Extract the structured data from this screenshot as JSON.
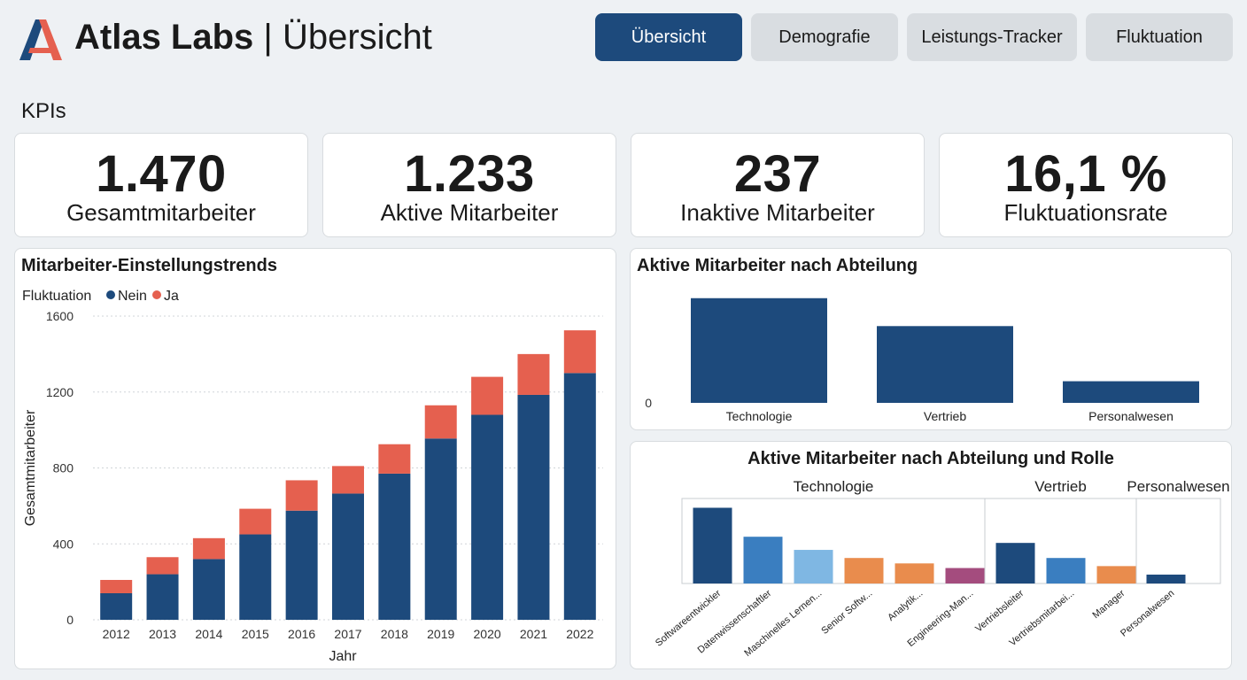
{
  "header": {
    "brand": "Atlas Labs",
    "separator": "|",
    "page_title": "Übersicht",
    "colors": {
      "logo_blue": "#1d4a7c",
      "logo_red": "#e5604f"
    }
  },
  "tabs": [
    {
      "label": "Übersicht",
      "active": true
    },
    {
      "label": "Demografie",
      "active": false
    },
    {
      "label": "Leistungs-Tracker",
      "active": false
    },
    {
      "label": "Fluktuation",
      "active": false
    }
  ],
  "kpi_section": {
    "heading": "KPIs"
  },
  "kpis": [
    {
      "value": "1.470",
      "label": "Gesamtmitarbeiter"
    },
    {
      "value": "1.233",
      "label": "Aktive Mitarbeiter"
    },
    {
      "value": "237",
      "label": "Inaktive Mitarbeiter"
    },
    {
      "value": "16,1 %",
      "label": "Fluktuationsrate"
    }
  ],
  "hiring_panel": {
    "title": "Mitarbeiter-Einstellungstrends"
  },
  "dept_panel": {
    "title": "Aktive Mitarbeiter nach Abteilung"
  },
  "role_panel": {
    "title": "Aktive Mitarbeiter nach Abteilung und Rolle"
  },
  "chart_data": [
    {
      "type": "bar",
      "stacked": true,
      "title": "Mitarbeiter-Einstellungstrends",
      "xlabel": "Jahr",
      "ylabel": "Gesamtmitarbeiter",
      "legend_title": "Fluktuation",
      "legend_position": "top-left",
      "grid": true,
      "ylim": [
        0,
        1600
      ],
      "yticks": [
        0,
        400,
        800,
        1200,
        1600
      ],
      "categories": [
        "2012",
        "2013",
        "2014",
        "2015",
        "2016",
        "2017",
        "2018",
        "2019",
        "2020",
        "2021",
        "2022"
      ],
      "series": [
        {
          "name": "Nein",
          "color": "#1d4a7c",
          "values": [
            140,
            240,
            320,
            450,
            575,
            665,
            770,
            955,
            1080,
            1185,
            1300
          ]
        },
        {
          "name": "Ja",
          "color": "#e5604f",
          "values": [
            70,
            90,
            110,
            135,
            160,
            145,
            155,
            175,
            200,
            215,
            225
          ]
        }
      ]
    },
    {
      "type": "bar",
      "title": "Aktive Mitarbeiter nach Abteilung",
      "grid": false,
      "yticks": [
        0
      ],
      "ylim": [
        0,
        850
      ],
      "color": "#1d4a7c",
      "categories": [
        "Technologie",
        "Vertrieb",
        "Personalwesen"
      ],
      "values": [
        750,
        550,
        155
      ]
    },
    {
      "type": "bar",
      "title": "Aktive Mitarbeiter nach Abteilung und Rolle",
      "grid": false,
      "ylim": [
        0,
        220
      ],
      "groups": [
        {
          "name": "Technologie",
          "categories": [
            "Softwareentwickler",
            "Datenwissenschaftler",
            "Maschinelles Lernen...",
            "Senior Softw...",
            "Analytik...",
            "Engineering-Man..."
          ],
          "values": [
            196,
            121,
            87,
            66,
            52,
            40
          ],
          "colors": [
            "#1d4a7c",
            "#3a7ec0",
            "#7fb7e3",
            "#e98c4d",
            "#e98c4d",
            "#a44c7e"
          ]
        },
        {
          "name": "Vertrieb",
          "categories": [
            "Vertriebsleiter",
            "Vertriebsmitarbei...",
            "Manager"
          ],
          "values": [
            105,
            66,
            45
          ],
          "colors": [
            "#1d4a7c",
            "#3a7ec0",
            "#e98c4d"
          ]
        },
        {
          "name": "Personalwesen",
          "categories": [
            "Personalwesen"
          ],
          "values": [
            23
          ],
          "colors": [
            "#1d4a7c"
          ]
        }
      ]
    }
  ]
}
